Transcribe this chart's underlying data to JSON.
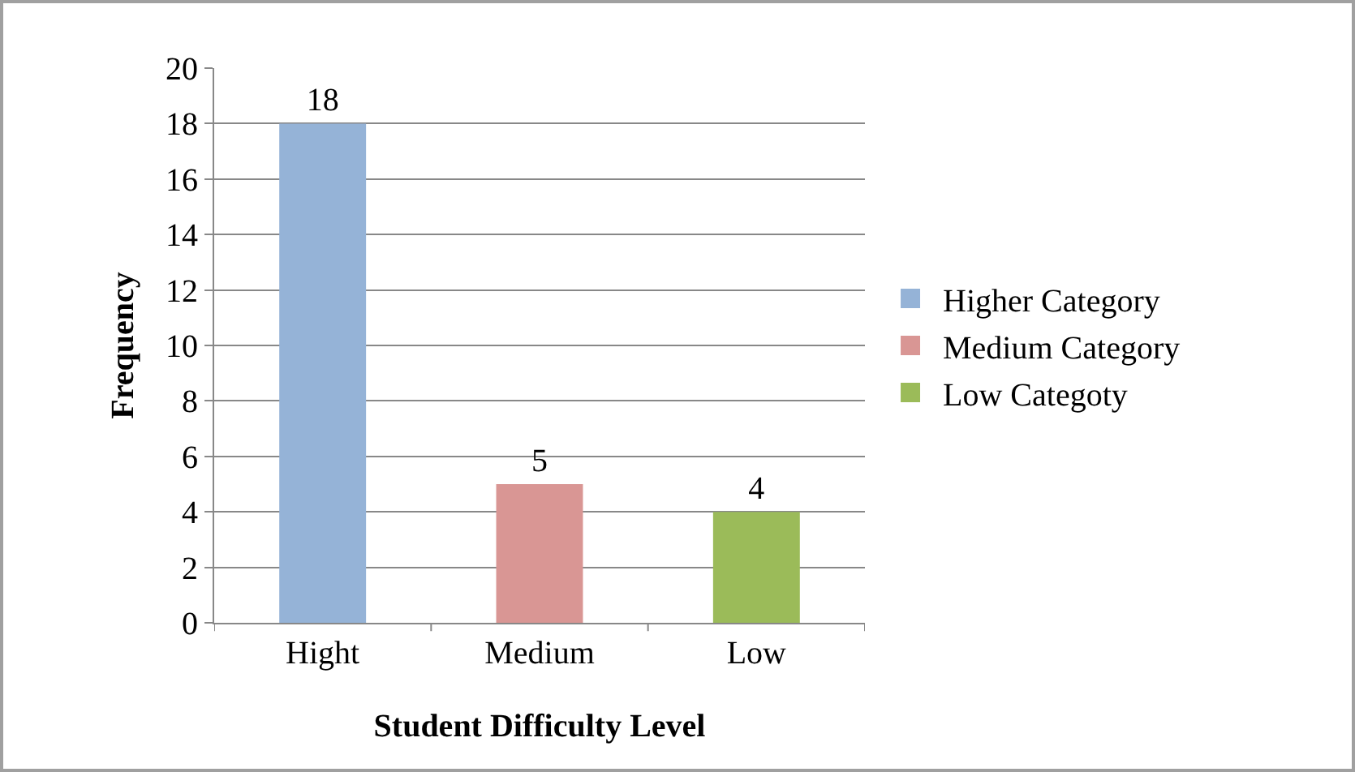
{
  "chart_data": {
    "type": "bar",
    "xlabel": "Student Difficulty Level",
    "ylabel": "Frequency",
    "categories": [
      "Hight",
      "Medium",
      "Low"
    ],
    "series": [
      {
        "name": "Higher Category",
        "color": "#95b3d7",
        "values": [
          18,
          null,
          null
        ]
      },
      {
        "name": "Medium Category",
        "color": "#d99694",
        "values": [
          null,
          5,
          null
        ]
      },
      {
        "name": "Low Categoty",
        "color": "#9bbb59",
        "values": [
          null,
          null,
          4
        ]
      }
    ],
    "ylim": [
      0,
      20
    ],
    "yticks": [
      0,
      2,
      4,
      6,
      8,
      10,
      12,
      14,
      16,
      18,
      20
    ],
    "grid": "y",
    "legend": "right",
    "data_labels": true
  }
}
